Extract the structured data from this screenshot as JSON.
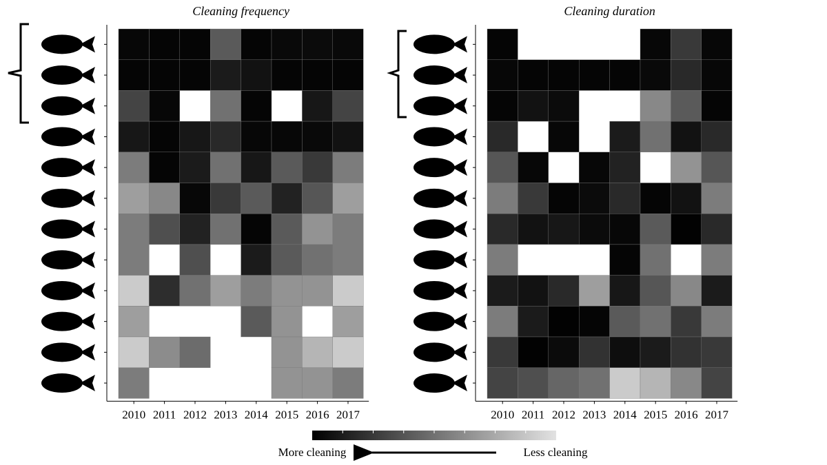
{
  "chart_data": [
    {
      "type": "heatmap",
      "title": "Cleaning frequency",
      "categories": [
        "2010",
        "2011",
        "2012",
        "2013",
        "2014",
        "2015",
        "2016",
        "2017"
      ],
      "values": [
        [
          3,
          2,
          2,
          40,
          2,
          4,
          5,
          4
        ],
        [
          2,
          2,
          2,
          12,
          8,
          2,
          2,
          2
        ],
        [
          30,
          3,
          null,
          50,
          2,
          null,
          10,
          30
        ],
        [
          10,
          2,
          10,
          18,
          3,
          3,
          4,
          8
        ],
        [
          55,
          2,
          12,
          50,
          10,
          40,
          25,
          55
        ],
        [
          70,
          60,
          3,
          25,
          40,
          15,
          38,
          70
        ],
        [
          55,
          35,
          15,
          50,
          2,
          40,
          65,
          55
        ],
        [
          55,
          null,
          35,
          null,
          12,
          40,
          50,
          55
        ],
        [
          90,
          20,
          50,
          70,
          55,
          65,
          65,
          90
        ],
        [
          70,
          null,
          null,
          null,
          40,
          65,
          null,
          70
        ],
        [
          90,
          62,
          48,
          null,
          null,
          65,
          80,
          90
        ],
        [
          55,
          null,
          null,
          null,
          null,
          65,
          65,
          55
        ]
      ]
    },
    {
      "type": "heatmap",
      "title": "Cleaning duration",
      "categories": [
        "2010",
        "2011",
        "2012",
        "2013",
        "2014",
        "2015",
        "2016",
        "2017"
      ],
      "values": [
        [
          2,
          null,
          null,
          null,
          null,
          3,
          25,
          3
        ],
        [
          3,
          2,
          2,
          2,
          2,
          4,
          18,
          3
        ],
        [
          2,
          8,
          5,
          null,
          null,
          60,
          40,
          2
        ],
        [
          18,
          null,
          3,
          null,
          12,
          50,
          8,
          18
        ],
        [
          38,
          3,
          null,
          3,
          15,
          null,
          65,
          38
        ],
        [
          55,
          25,
          2,
          5,
          18,
          2,
          8,
          55
        ],
        [
          18,
          8,
          10,
          5,
          3,
          40,
          1,
          18
        ],
        [
          55,
          null,
          null,
          null,
          2,
          50,
          null,
          55
        ],
        [
          12,
          8,
          18,
          70,
          10,
          38,
          60,
          12
        ],
        [
          55,
          12,
          1,
          2,
          40,
          50,
          25,
          55
        ],
        [
          25,
          1,
          5,
          22,
          6,
          12,
          22,
          25
        ],
        [
          30,
          35,
          45,
          50,
          90,
          80,
          60,
          30
        ]
      ]
    }
  ],
  "colorbar": {
    "zlim": [
      0,
      100
    ],
    "colors": [
      "#000000",
      "#e2e2e2"
    ],
    "left_label": "More cleaning",
    "right_label": "Less cleaning"
  }
}
